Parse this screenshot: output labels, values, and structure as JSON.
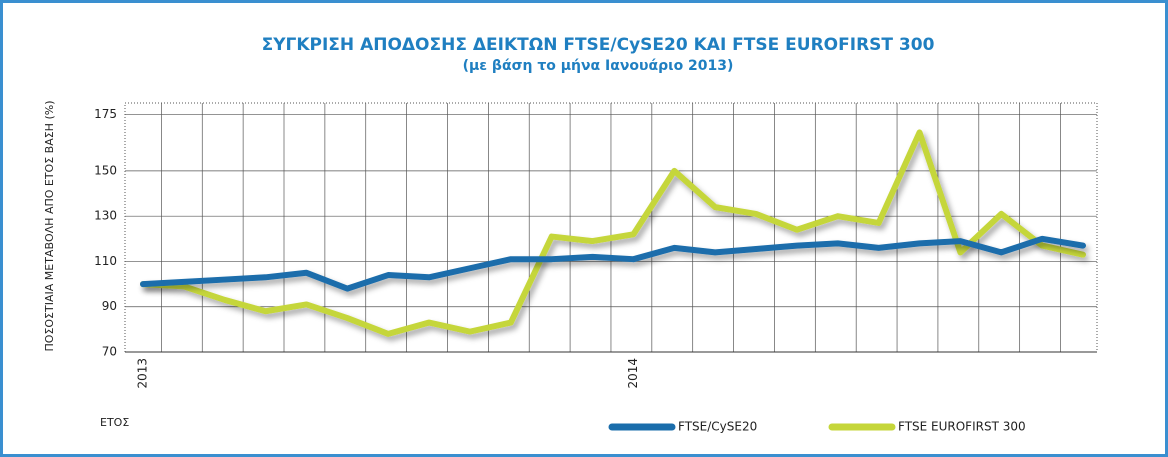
{
  "chart_data": {
    "type": "line",
    "title": "ΣΥΓΚΡΙΣΗ ΑΠΟΔΟΣΗΣ ΔΕΙΚΤΩΝ FTSE/CySE20 ΚΑΙ FTSE EUROFIRST 300",
    "subtitle": "(με βάση το μήνα Ιανουάριο 2013)",
    "y_label": "ΠΟΣΟΣΤΙΑΙΑ ΜΕΤΑΒΟΛΗ ΑΠΟ ΕΤΟΣ ΒΑΣΗ (%)",
    "x_label": "ΕΤΟΣ",
    "categories": [
      "2013",
      null,
      null,
      null,
      null,
      null,
      null,
      null,
      null,
      null,
      null,
      null,
      "2014",
      null,
      null,
      null,
      null,
      null,
      null,
      null,
      null,
      null,
      null,
      null
    ],
    "series": [
      {
        "name": "FTSE/CySE20",
        "color": "#1a6dab",
        "values": [
          100,
          101,
          102,
          103,
          105,
          98,
          104,
          103,
          107,
          111,
          111,
          112,
          111,
          116,
          114,
          115.5,
          117,
          118,
          116,
          118,
          119,
          114,
          120,
          117
        ]
      },
      {
        "name": "FTSE EUROFIRST 300",
        "color": "#c5d63a",
        "values": [
          100,
          99,
          93,
          88,
          91,
          85,
          78,
          83,
          79,
          83,
          121,
          119,
          122,
          150,
          134,
          131,
          124,
          130,
          127,
          167,
          114,
          131,
          117,
          113
        ]
      }
    ],
    "ylim": [
      70,
      180
    ],
    "yticks": [
      70,
      90,
      110,
      130,
      150,
      175
    ],
    "grid": true,
    "legend": "bottom"
  }
}
